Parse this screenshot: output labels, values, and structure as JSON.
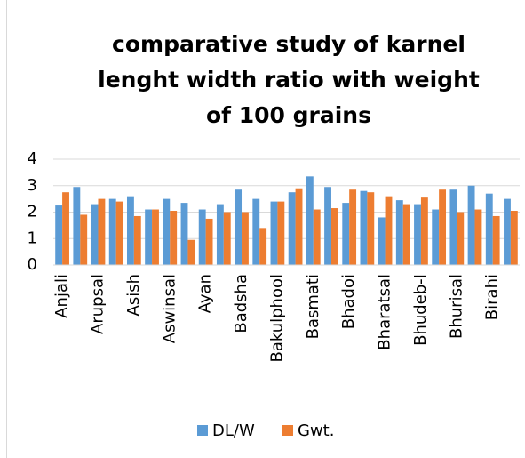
{
  "chart_data": {
    "type": "bar",
    "title": "comparative study of karnel lenght width ratio with weight of 100 grains",
    "categories": [
      "Anjali",
      null,
      "Arupsal",
      null,
      "Asish",
      null,
      "Aswinsal",
      null,
      "Ayan",
      null,
      "Badsha",
      null,
      "Bakulphool",
      null,
      "Basmati",
      null,
      "Bhadoi",
      null,
      "Bharatsal",
      null,
      "Bhudeb-I",
      null,
      "Bhurisal",
      null,
      "Birahi",
      null
    ],
    "series": [
      {
        "name": "DL/W",
        "color": "#5b9bd5",
        "values": [
          2.25,
          2.95,
          2.3,
          2.5,
          2.6,
          2.1,
          2.5,
          2.35,
          2.1,
          2.3,
          2.85,
          2.5,
          2.4,
          2.75,
          3.35,
          2.95,
          2.35,
          2.8,
          1.8,
          2.45,
          2.3,
          2.1,
          2.85,
          3.0,
          2.7,
          2.5
        ]
      },
      {
        "name": "Gwt.",
        "color": "#ed7d31",
        "values": [
          2.75,
          1.9,
          2.5,
          2.4,
          1.85,
          2.1,
          2.05,
          0.95,
          1.75,
          2.0,
          2.0,
          1.4,
          2.4,
          2.9,
          2.1,
          2.15,
          2.85,
          2.75,
          2.6,
          2.3,
          2.55,
          2.85,
          2.0,
          2.1,
          1.85,
          2.05
        ]
      }
    ],
    "ylim": [
      0,
      4
    ],
    "yticks": [
      0,
      1,
      2,
      3,
      4
    ],
    "grid": true,
    "legend": "bottom"
  }
}
